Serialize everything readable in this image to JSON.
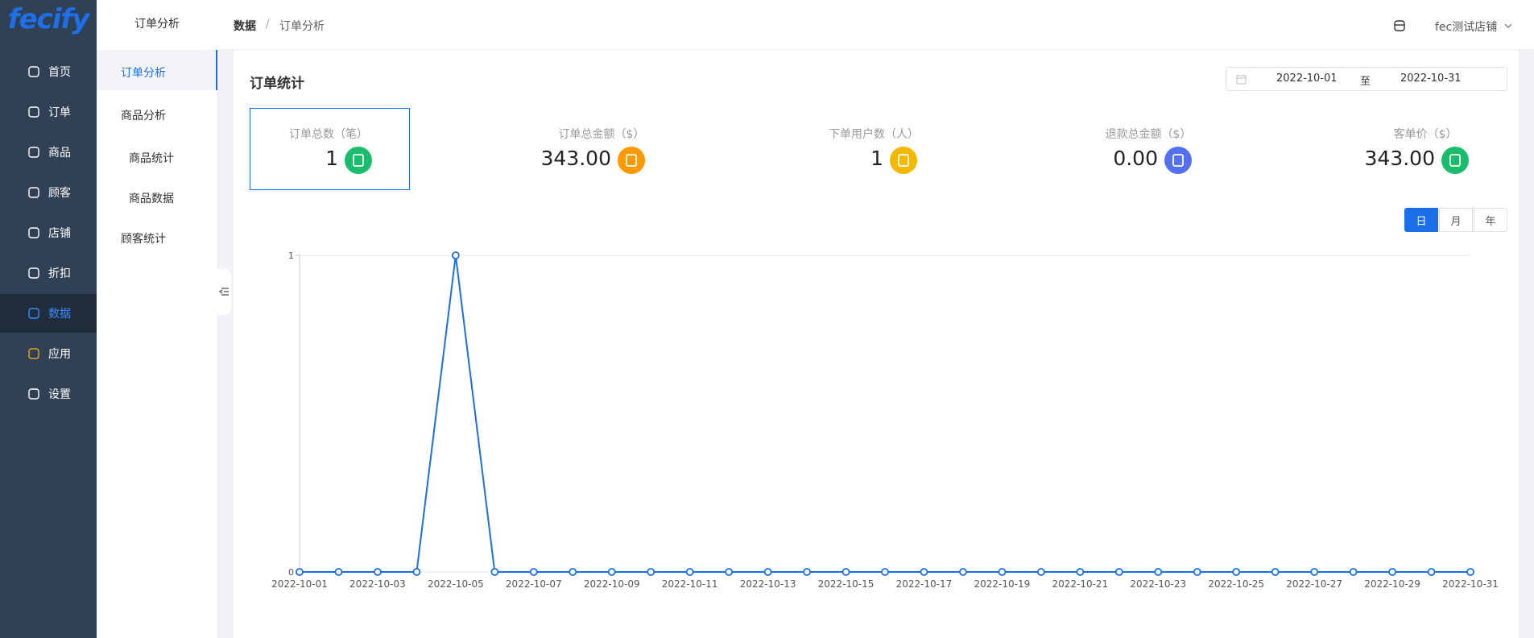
{
  "logo": "fecify",
  "nav": [
    "首页",
    "订单",
    "商品",
    "顾客",
    "店铺",
    "折扣",
    "数据",
    "应用",
    "设置"
  ],
  "submenu": {
    "title": "订单分析",
    "items": [
      "订单分析",
      "商品分析",
      "商品统计",
      "商品数据",
      "顾客统计"
    ]
  },
  "breadcrumb": {
    "items": [
      "数据",
      "订单分析"
    ],
    "separator": "/"
  },
  "store": "fec测试店铺",
  "panel_title": "订单统计",
  "date_range": {
    "start": "2022-10-01",
    "separator": "至",
    "end": "2022-10-31"
  },
  "stats": [
    {
      "label": "订单总数（笔）",
      "value": "1"
    },
    {
      "label": "订单总金额（$）",
      "value": "343.00"
    },
    {
      "label": "下单用户数（人）",
      "value": "1"
    },
    {
      "label": "退款总金额（$）",
      "value": "0.00"
    },
    {
      "label": "客单价（$）",
      "value": "343.00"
    }
  ],
  "period_buttons": [
    "日",
    "月",
    "年"
  ],
  "chart_data": {
    "type": "line",
    "categories": [
      "2022-10-01",
      null,
      "2022-10-03",
      null,
      "2022-10-05",
      null,
      "2022-10-07",
      null,
      "2022-10-09",
      null,
      "2022-10-11",
      null,
      "2022-10-13",
      null,
      "2022-10-15",
      null,
      "2022-10-17",
      null,
      "2022-10-19",
      null,
      "2022-10-21",
      null,
      "2022-10-23",
      null,
      "2022-10-25",
      null,
      "2022-10-27",
      null,
      "2022-10-29",
      null,
      "2022-10-31"
    ],
    "values": [
      0,
      0,
      0,
      0,
      1,
      0,
      0,
      0,
      0,
      0,
      0,
      0,
      0,
      0,
      0,
      0,
      0,
      0,
      0,
      0,
      0,
      0,
      0,
      0,
      0,
      0,
      0,
      0,
      0,
      0,
      0
    ],
    "color": "#1a6ee8",
    "ylim": [
      0,
      1
    ],
    "yticks": [
      0,
      1
    ],
    "grid": true
  }
}
